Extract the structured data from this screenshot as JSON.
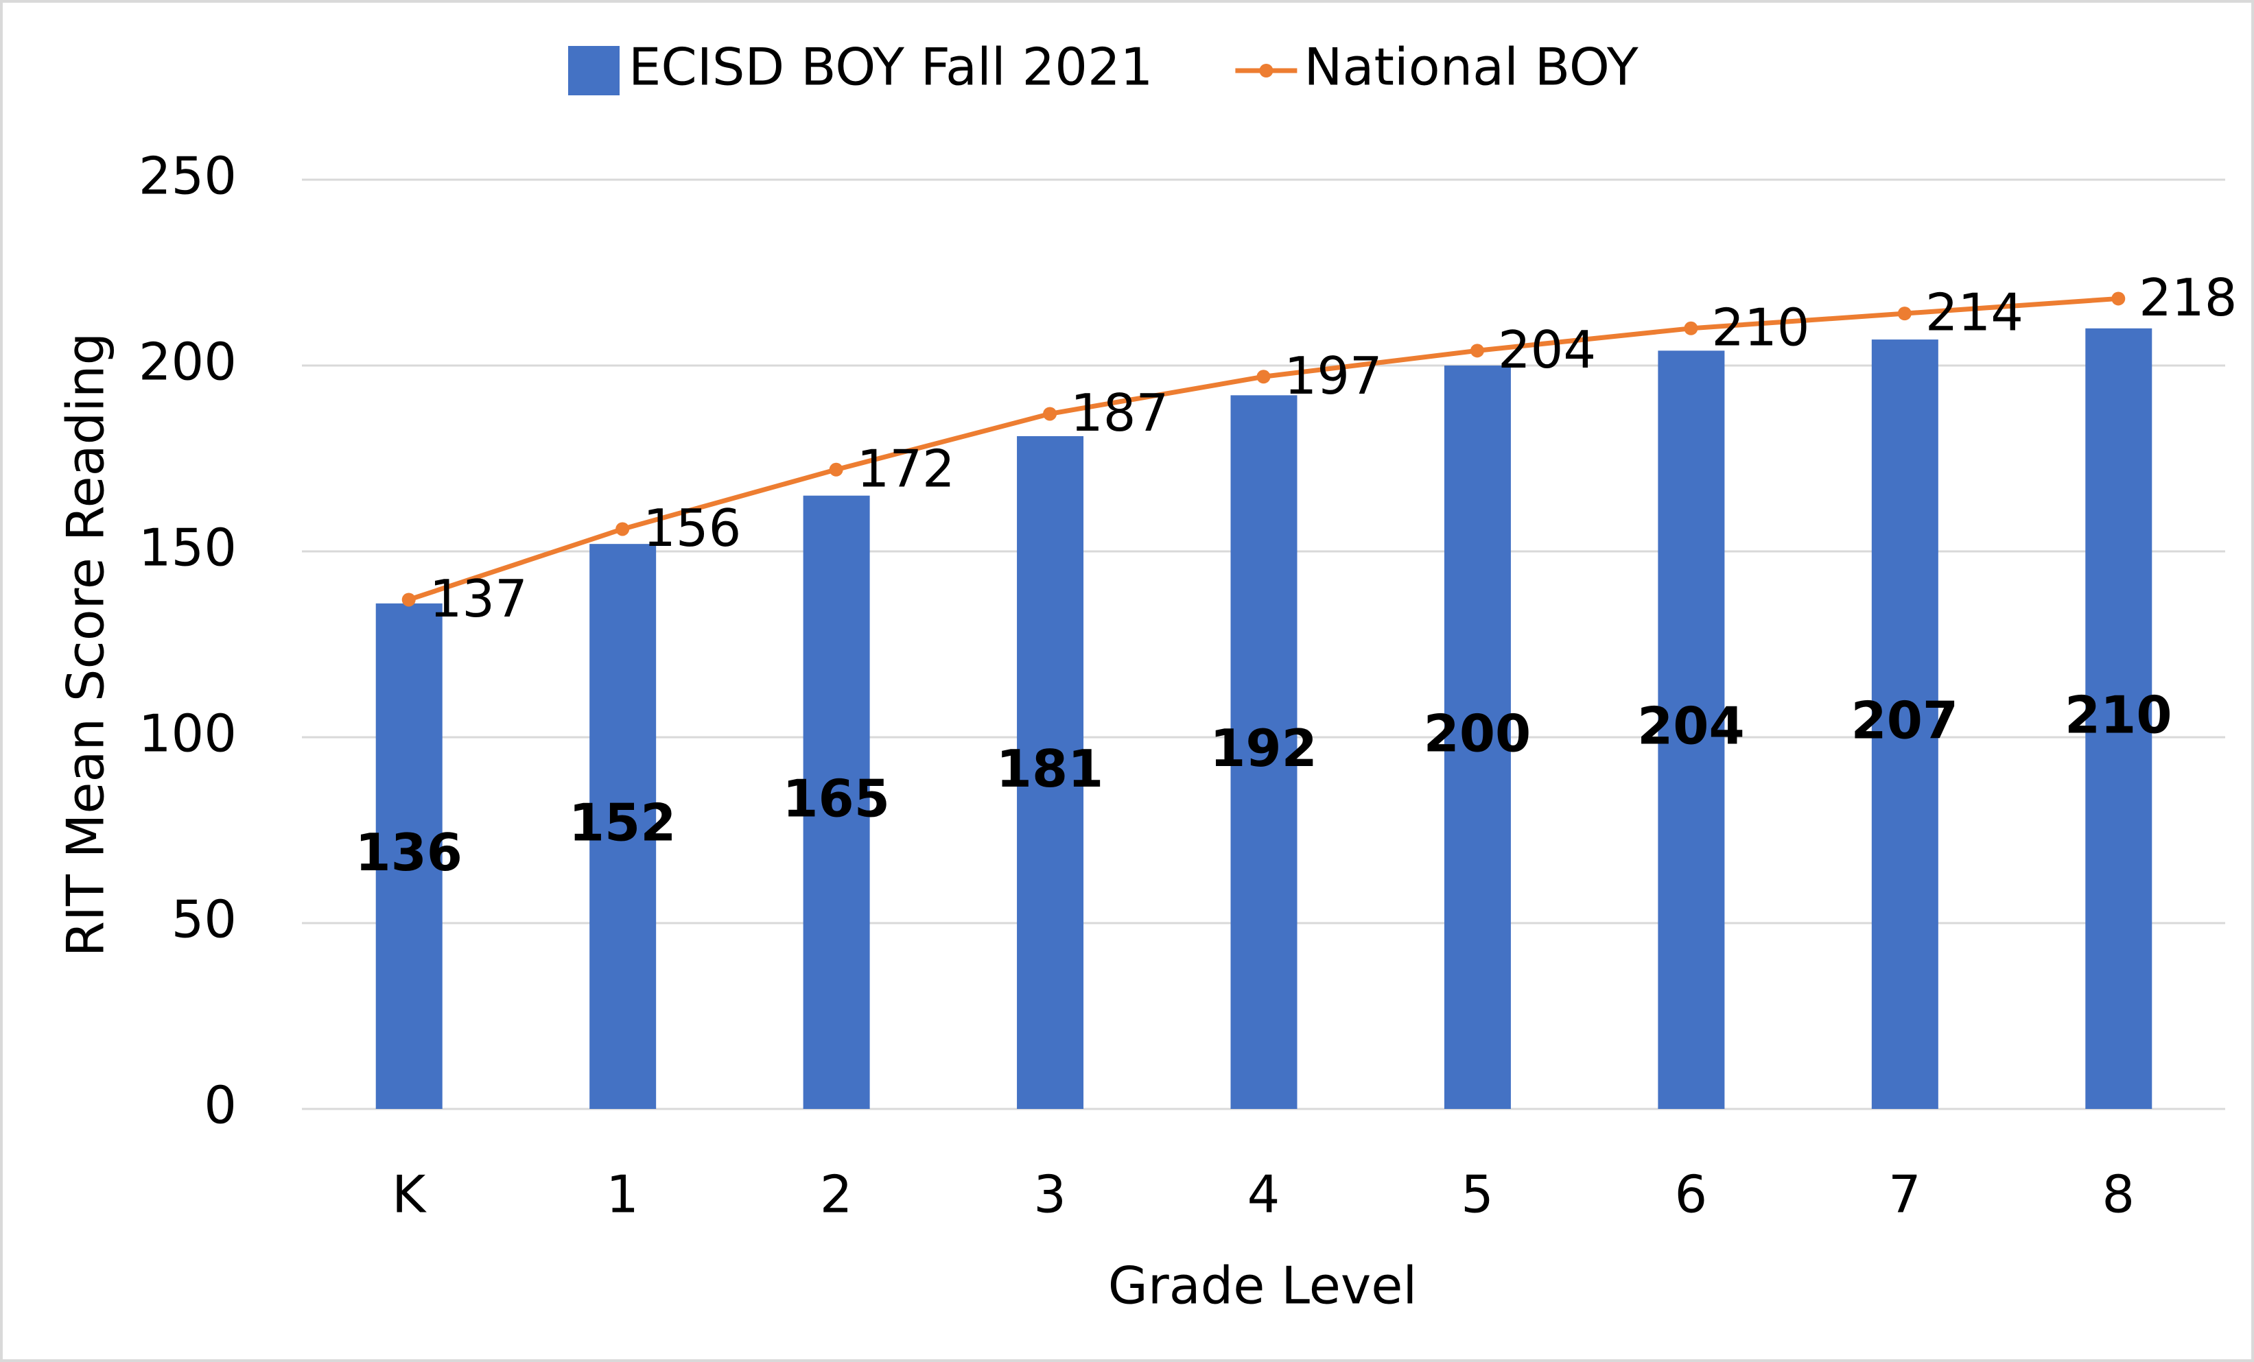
{
  "chart_data": {
    "type": "bar",
    "x_label": "Grade Level",
    "y_label": "RIT Mean Score Reading",
    "categories": [
      "K",
      "1",
      "2",
      "3",
      "4",
      "5",
      "6",
      "7",
      "8"
    ],
    "series": [
      {
        "name": "ECISD BOY Fall 2021",
        "type": "bar",
        "color": "#4472c4",
        "values": [
          136,
          152,
          165,
          181,
          192,
          200,
          204,
          207,
          210
        ]
      },
      {
        "name": "National BOY",
        "type": "line",
        "color": "#ed7d31",
        "values": [
          137,
          156,
          172,
          187,
          197,
          204,
          210,
          214,
          218
        ]
      }
    ],
    "ylim": [
      0,
      250
    ],
    "yticks": [
      0,
      50,
      100,
      150,
      200,
      250
    ],
    "grid": true,
    "legend": "top"
  }
}
